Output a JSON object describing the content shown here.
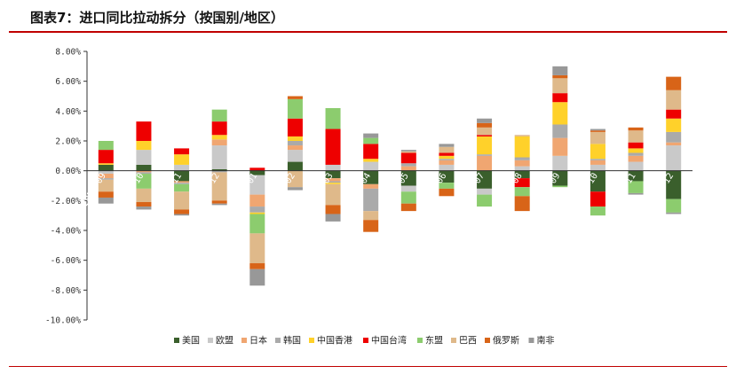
{
  "title": "图表7：进口同比拉动拆分（按国别/地区）",
  "colors": {
    "accent_line": "#c00000",
    "axis": "#333333"
  },
  "chart_data": {
    "type": "bar",
    "stacked": true,
    "title": "图表7：进口同比拉动拆分（按国别/地区）",
    "xlabel": "",
    "ylabel": "",
    "ylim": [
      -10,
      8
    ],
    "y_ticks": [
      8,
      6,
      4,
      2,
      0,
      -2,
      -4,
      -6,
      -8,
      -10
    ],
    "y_tick_labels": [
      "8.00%",
      "6.00%",
      "4.00%",
      "2.00%",
      "0.00%",
      "-2.00%",
      "-4.00%",
      "-6.00%",
      "-8.00%",
      "-10.00%"
    ],
    "legend_position": "bottom",
    "categories": [
      "2024-09",
      "2024-10",
      "2024-11",
      "2024-12",
      "2025-01",
      "2025-02",
      "2025-03",
      "2025-04",
      "2025-05",
      "2025-06",
      "2025-07",
      "2025-08",
      "2025-09",
      "2025-10",
      "2025-11",
      "2025-12"
    ],
    "series": [
      {
        "name": "美国",
        "color": "#3a5f2c",
        "values": [
          0.4,
          0.4,
          -0.7,
          0.1,
          -0.3,
          0.6,
          -0.5,
          -0.9,
          -1.0,
          -0.8,
          -1.2,
          -0.5,
          -1.0,
          -1.4,
          -0.7,
          -1.9
        ]
      },
      {
        "name": "欧盟",
        "color": "#c9c9c9",
        "values": [
          -0.2,
          1.0,
          0.4,
          1.6,
          -1.3,
          0.8,
          0.4,
          0.6,
          -0.4,
          0.4,
          -0.4,
          0.3,
          1.0,
          0.4,
          0.6,
          1.7
        ]
      },
      {
        "name": "日本",
        "color": "#f0a671",
        "values": [
          -0.3,
          -0.1,
          -0.1,
          0.4,
          -0.8,
          0.3,
          -0.2,
          -0.3,
          0.3,
          0.3,
          1.0,
          0.4,
          1.2,
          0.3,
          0.4,
          0.2
        ]
      },
      {
        "name": "韩国",
        "color": "#aaaaaa",
        "values": [
          -0.1,
          -0.1,
          -0.1,
          -0.1,
          -0.4,
          0.3,
          -0.1,
          -1.5,
          0.2,
          0.1,
          0.1,
          0.2,
          0.9,
          0.1,
          0.2,
          0.7
        ]
      },
      {
        "name": "中国香港",
        "color": "#ffd12a",
        "values": [
          0.1,
          0.6,
          0.7,
          0.3,
          -0.1,
          0.3,
          -0.1,
          0.2,
          0.0,
          0.2,
          1.2,
          1.4,
          1.5,
          1.0,
          0.3,
          0.9
        ]
      },
      {
        "name": "中国台湾",
        "color": "#ee0000",
        "values": [
          0.9,
          1.3,
          0.4,
          0.9,
          0.2,
          1.2,
          2.4,
          1.0,
          0.7,
          0.2,
          0.1,
          -0.6,
          0.6,
          -1.0,
          0.4,
          0.6
        ]
      },
      {
        "name": "东盟",
        "color": "#8ccc6e",
        "values": [
          0.6,
          -1.0,
          -0.5,
          0.8,
          -1.3,
          1.3,
          1.4,
          0.4,
          -0.8,
          -0.4,
          -0.8,
          -0.6,
          -0.1,
          -0.6,
          -0.8,
          -0.9
        ]
      },
      {
        "name": "巴西",
        "color": "#dfb98a",
        "values": [
          -0.8,
          -0.9,
          -1.2,
          -1.9,
          -2.0,
          -1.1,
          -1.4,
          -0.6,
          0.1,
          0.4,
          0.5,
          0.1,
          1.0,
          0.8,
          0.8,
          1.3
        ]
      },
      {
        "name": "俄罗斯",
        "color": "#d86418",
        "values": [
          -0.4,
          -0.3,
          -0.3,
          -0.2,
          -0.4,
          0.2,
          -0.6,
          -0.8,
          -0.5,
          -0.5,
          0.3,
          -1.0,
          0.2,
          0.1,
          0.2,
          0.9
        ]
      },
      {
        "name": "南非",
        "color": "#989898",
        "values": [
          -0.4,
          -0.2,
          -0.1,
          -0.1,
          -1.1,
          -0.2,
          -0.5,
          0.3,
          0.1,
          0.2,
          0.3,
          0.0,
          0.6,
          0.1,
          -0.1,
          -0.1
        ]
      }
    ]
  }
}
